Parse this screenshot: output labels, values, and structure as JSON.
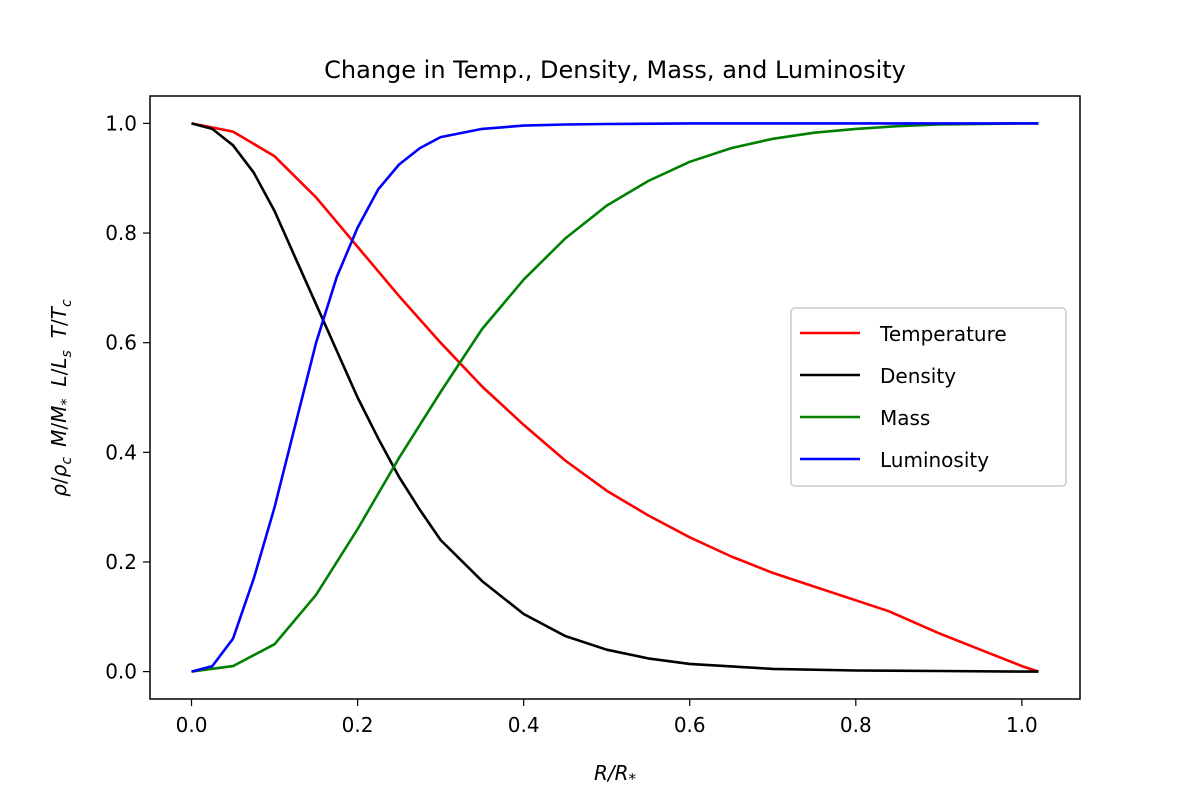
{
  "chart_data": {
    "type": "line",
    "title": "Change in Temp., Density, Mass, and Luminosity",
    "xlabel": "R/R*",
    "ylabel": "ρ/ρc  M/M*  L/Ls  T/Tc",
    "xlim": [
      -0.05,
      1.07
    ],
    "ylim": [
      -0.05,
      1.05
    ],
    "xticks": [
      "0.0",
      "0.2",
      "0.4",
      "0.6",
      "0.8",
      "1.0"
    ],
    "yticks": [
      "0.0",
      "0.2",
      "0.4",
      "0.6",
      "0.8",
      "1.0"
    ],
    "grid": false,
    "legend_position": "center-right",
    "series": [
      {
        "name": "Temperature",
        "color": "#ff0000",
        "x": [
          0.0,
          0.05,
          0.1,
          0.15,
          0.2,
          0.25,
          0.3,
          0.35,
          0.4,
          0.45,
          0.5,
          0.55,
          0.6,
          0.65,
          0.7,
          0.75,
          0.8,
          0.84,
          0.9,
          0.95,
          1.0,
          1.02
        ],
        "y": [
          1.0,
          0.985,
          0.94,
          0.865,
          0.775,
          0.685,
          0.6,
          0.52,
          0.45,
          0.385,
          0.33,
          0.285,
          0.245,
          0.21,
          0.18,
          0.155,
          0.13,
          0.11,
          0.07,
          0.04,
          0.01,
          0.0
        ]
      },
      {
        "name": "Density",
        "color": "#000000",
        "x": [
          0.0,
          0.025,
          0.05,
          0.075,
          0.1,
          0.125,
          0.15,
          0.175,
          0.2,
          0.225,
          0.25,
          0.275,
          0.3,
          0.35,
          0.4,
          0.45,
          0.5,
          0.55,
          0.6,
          0.7,
          0.8,
          0.9,
          1.0,
          1.02
        ],
        "y": [
          1.0,
          0.99,
          0.96,
          0.91,
          0.84,
          0.755,
          0.67,
          0.585,
          0.5,
          0.425,
          0.355,
          0.295,
          0.24,
          0.165,
          0.105,
          0.065,
          0.04,
          0.024,
          0.014,
          0.005,
          0.002,
          0.001,
          0.0,
          0.0
        ]
      },
      {
        "name": "Mass",
        "color": "#008000",
        "x": [
          0.0,
          0.05,
          0.1,
          0.15,
          0.2,
          0.25,
          0.3,
          0.35,
          0.4,
          0.45,
          0.5,
          0.55,
          0.6,
          0.65,
          0.7,
          0.75,
          0.8,
          0.85,
          0.9,
          0.95,
          1.0,
          1.02
        ],
        "y": [
          0.0,
          0.01,
          0.05,
          0.14,
          0.26,
          0.39,
          0.51,
          0.625,
          0.715,
          0.79,
          0.85,
          0.895,
          0.93,
          0.955,
          0.972,
          0.983,
          0.99,
          0.995,
          0.998,
          0.999,
          1.0,
          1.0
        ]
      },
      {
        "name": "Luminosity",
        "color": "#0000ff",
        "x": [
          0.0,
          0.025,
          0.05,
          0.075,
          0.1,
          0.125,
          0.15,
          0.175,
          0.2,
          0.225,
          0.25,
          0.275,
          0.3,
          0.35,
          0.4,
          0.45,
          0.5,
          0.6,
          0.7,
          0.8,
          0.9,
          1.0,
          1.02
        ],
        "y": [
          0.0,
          0.01,
          0.06,
          0.17,
          0.3,
          0.45,
          0.6,
          0.72,
          0.81,
          0.88,
          0.925,
          0.955,
          0.975,
          0.99,
          0.996,
          0.998,
          0.999,
          1.0,
          1.0,
          1.0,
          1.0,
          1.0,
          1.0
        ]
      }
    ]
  }
}
